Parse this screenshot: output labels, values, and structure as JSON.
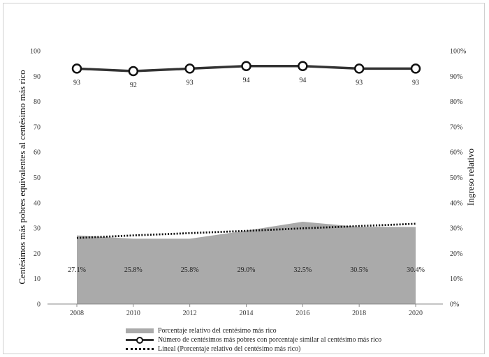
{
  "chart_data": {
    "type": "line",
    "categories": [
      "2008",
      "2010",
      "2012",
      "2014",
      "2016",
      "2018",
      "2020"
    ],
    "y_left": {
      "label": "Centésimos más pobres equivalentes al centésimo más rico",
      "ylim": [
        0,
        100
      ],
      "ticks": [
        "0",
        "10",
        "20",
        "30",
        "40",
        "50",
        "60",
        "70",
        "80",
        "90",
        "100"
      ]
    },
    "y_right": {
      "label": "Ingreso relativo",
      "ylim": [
        0,
        100
      ],
      "ticks": [
        "0%",
        "10%",
        "20%",
        "30%",
        "40%",
        "50%",
        "60%",
        "70%",
        "80%",
        "90%",
        "100%"
      ]
    },
    "series": [
      {
        "name": "Porcentaje relativo del centésimo más rico",
        "kind": "area",
        "axis": "right",
        "values": [
          27.1,
          25.8,
          25.8,
          29.0,
          32.5,
          30.5,
          30.4
        ],
        "labels": [
          "27.1%",
          "25.8%",
          "25.8%",
          "29.0%",
          "32.5%",
          "30.5%",
          "30.4%"
        ],
        "color": "#aaaaaa"
      },
      {
        "name": "Número de centésimos más pobres con porcentaje similar al centésimo más rico",
        "kind": "line-marker",
        "axis": "left",
        "values": [
          93,
          92,
          93,
          94,
          94,
          93,
          93
        ],
        "labels": [
          "93",
          "92",
          "93",
          "94",
          "94",
          "93",
          "93"
        ],
        "color": "#333333"
      },
      {
        "name": "Lineal (Porcentaje relativo del centésimo más rico)",
        "kind": "trendline",
        "axis": "right",
        "values": [
          26.1,
          27.1,
          28.0,
          28.9,
          29.9,
          30.8,
          31.7
        ],
        "color": "#111111"
      }
    ],
    "legend_position": "bottom",
    "grid": false
  }
}
